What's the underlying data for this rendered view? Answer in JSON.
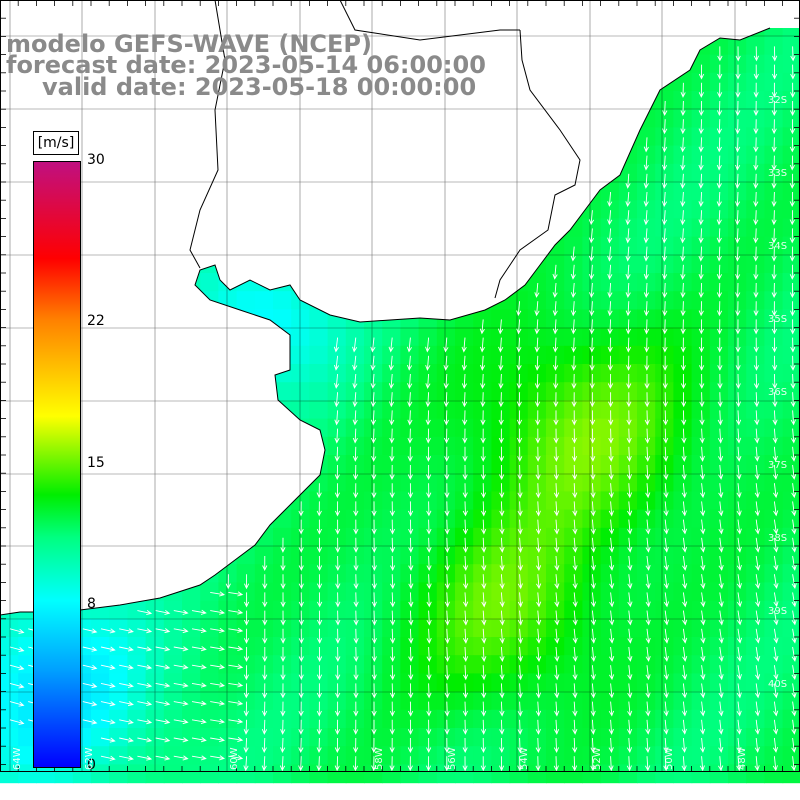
{
  "title": {
    "line1": "modelo GEFS-WAVE (NCEP)",
    "line2": "forecast date: 2023-05-14 06:00:00",
    "line3": "valid date: 2023-05-18 00:00:00"
  },
  "colorbar": {
    "unit": "[m/s]",
    "min": 0,
    "max": 30,
    "tick_labels": [
      "30",
      "22",
      "15",
      "8",
      "0"
    ],
    "tick_values": [
      30,
      22,
      15,
      8,
      0
    ]
  },
  "map": {
    "lon_labels": [
      "64W",
      "62W",
      "60W",
      "58W",
      "56W",
      "54W",
      "52W",
      "50W",
      "48W"
    ],
    "lat_labels": [
      "32S",
      "33S",
      "34S",
      "35S",
      "36S",
      "37S",
      "38S",
      "39S",
      "40S"
    ],
    "colors": {
      "land": "#ffffff",
      "coast": "#000000",
      "grid": "#000000",
      "vector": "#ffffff"
    }
  }
}
